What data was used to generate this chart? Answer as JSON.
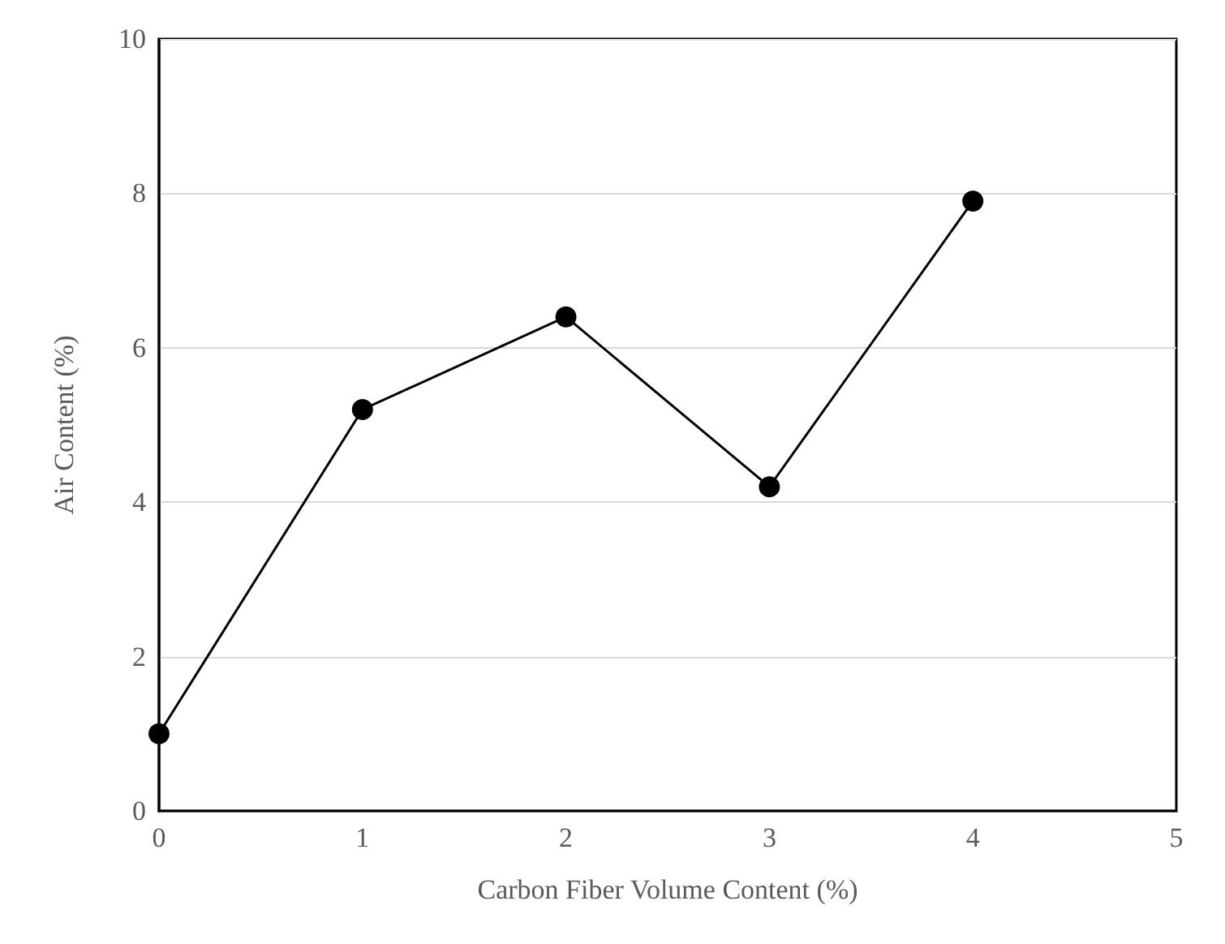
{
  "chart_data": {
    "type": "line",
    "xlabel": "Carbon Fiber Volume Content (%)",
    "ylabel": "Air Content (%)",
    "x": [
      0,
      1,
      2,
      3,
      4
    ],
    "series": [
      {
        "color": "#000000",
        "values": [
          1,
          5.2,
          6.4,
          4.2,
          7.9
        ]
      }
    ],
    "xlim": [
      0,
      5
    ],
    "xticks": [
      0,
      1,
      2,
      3,
      4,
      5
    ],
    "ylim": [
      0,
      10
    ],
    "yticks": [
      0,
      2,
      4,
      6,
      8,
      10
    ],
    "grid": "y",
    "marker": "circle",
    "line_style": "solid"
  }
}
